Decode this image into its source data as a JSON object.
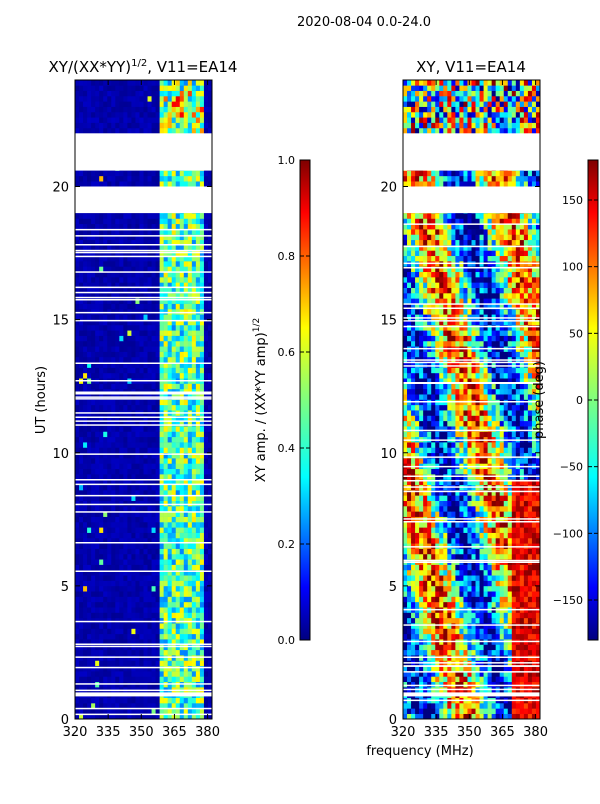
{
  "suptitle": "2020-08-04 0.0-24.0",
  "shared_xlabel": "frequency (MHz)",
  "colors": {
    "jet": [
      "#00007f",
      "#0000ff",
      "#007fff",
      "#00ffff",
      "#7fff7f",
      "#ffff00",
      "#ff7f00",
      "#ff0000",
      "#7f0000"
    ],
    "gap": "#ffffff"
  },
  "chart_data": [
    {
      "type": "heatmap",
      "title_main": "XY/(XX*YY)",
      "title_sup": "1/2",
      "title_rest": ", V11=EA14",
      "xlabel": "",
      "ylabel": "UT (hours)",
      "xlim": [
        320,
        382
      ],
      "ylim": [
        0,
        24
      ],
      "xticks": [
        320,
        335,
        350,
        365,
        380
      ],
      "xtick_labels": [
        "320",
        "335",
        "350",
        "365",
        "380"
      ],
      "yticks": [
        0,
        5,
        10,
        15,
        20
      ],
      "ytick_labels": [
        "0",
        "5",
        "10",
        "15",
        "20"
      ],
      "data_gaps_ut": [
        [
          0.85,
          1.0
        ],
        [
          19.0,
          20.0
        ],
        [
          21.3,
          22.8
        ]
      ],
      "colorbar": {
        "label_main": "XY amp. / (XX*YY amp)",
        "label_sup": "1/2",
        "range": [
          0.0,
          1.0
        ],
        "ticks": [
          0.0,
          0.2,
          0.4,
          0.6,
          0.8,
          1.0
        ],
        "tick_labels": [
          "0.0",
          "0.2",
          "0.4",
          "0.6",
          "0.8",
          "1.0"
        ]
      }
    },
    {
      "type": "heatmap",
      "title": "XY, V11=EA14",
      "xlabel": "frequency (MHz)",
      "ylabel": "",
      "xlim": [
        320,
        382
      ],
      "ylim": [
        0,
        24
      ],
      "xticks": [
        320,
        335,
        350,
        365,
        380
      ],
      "xtick_labels": [
        "320",
        "335",
        "350",
        "365",
        "380"
      ],
      "yticks": [
        0,
        5,
        10,
        15,
        20
      ],
      "ytick_labels": [
        "0",
        "5",
        "10",
        "15",
        "20"
      ],
      "data_gaps_ut": [
        [
          0.85,
          1.0
        ],
        [
          19.0,
          20.0
        ],
        [
          21.3,
          22.8
        ]
      ],
      "colorbar": {
        "label": "phase (deg)",
        "range": [
          -180,
          180
        ],
        "ticks": [
          -150,
          -100,
          -50,
          0,
          50,
          100,
          150
        ],
        "tick_labels": [
          "−150",
          "−100",
          "−50",
          "0",
          "50",
          "100",
          "150"
        ]
      }
    }
  ]
}
